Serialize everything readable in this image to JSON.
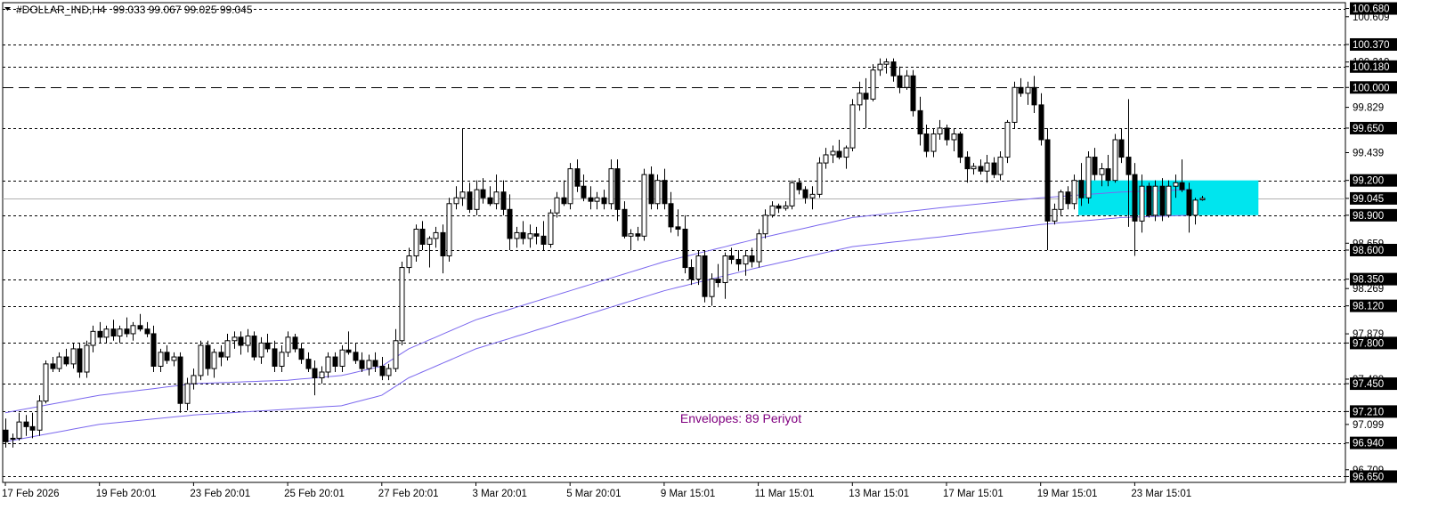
{
  "header": {
    "symbol_line": "#DOLLAR_IND,H4",
    "ohlc": "99.033 99.067 99.025 99.045"
  },
  "annotation": {
    "indicator_label": "Envelopes: 89 Periyot"
  },
  "colors": {
    "background": "#ffffff",
    "frame": "#000000",
    "candle_up_fill": "#ffffff",
    "candle_down_fill": "#000000",
    "candle_outline": "#000000",
    "envelope": "#7b68ee",
    "zone_fill": "#00e5ee",
    "bid_line": "#b0b0b0",
    "label_text": "#800080"
  },
  "chart_data": {
    "type": "candlestick",
    "symbol": "#DOLLAR_IND",
    "timeframe": "H4",
    "ylim": [
      96.6,
      100.73
    ],
    "y_ticks": [
      "100.680",
      "100.609",
      "100.370",
      "100.219",
      "100.180",
      "100.000",
      "99.829",
      "99.650",
      "99.439",
      "99.200",
      "99.045",
      "98.900",
      "98.659",
      "98.600",
      "98.350",
      "98.269",
      "98.120",
      "97.879",
      "97.800",
      "97.489",
      "97.450",
      "97.210",
      "97.099",
      "96.940",
      "96.709",
      "96.650"
    ],
    "x_tick_labels": [
      "17 Feb 2026",
      "19 Feb 20:01",
      "23 Feb 20:01",
      "25 Feb 20:01",
      "27 Feb 20:01",
      "3 Mar 20:01",
      "5 Mar 20:01",
      "9 Mar 15:01",
      "11 Mar 15:01",
      "13 Mar 15:01",
      "17 Mar 15:01",
      "19 Mar 15:01",
      "23 Mar 15:01"
    ],
    "x_tick_index": [
      0,
      14,
      28,
      42,
      56,
      70,
      84,
      98,
      112,
      126,
      140,
      154,
      168
    ],
    "horizontal_levels": [
      {
        "value": 100.68,
        "label": "100.680",
        "style": "dotted",
        "highlighted": true
      },
      {
        "value": 100.37,
        "label": "100.370",
        "style": "dotted",
        "highlighted": true
      },
      {
        "value": 100.18,
        "label": "100.180",
        "style": "dotted",
        "highlighted": true
      },
      {
        "value": 100.0,
        "label": "100.000",
        "style": "dashed",
        "highlighted": true
      },
      {
        "value": 99.65,
        "label": "99.650",
        "style": "dotted",
        "highlighted": true
      },
      {
        "value": 99.2,
        "label": "99.200",
        "style": "dotted",
        "highlighted": true
      },
      {
        "value": 99.045,
        "label": "99.045",
        "style": "solid",
        "highlighted": true
      },
      {
        "value": 98.9,
        "label": "98.900",
        "style": "dotted",
        "highlighted": true
      },
      {
        "value": 98.6,
        "label": "98.600",
        "style": "dotted",
        "highlighted": true
      },
      {
        "value": 98.35,
        "label": "98.350",
        "style": "dotted",
        "highlighted": true
      },
      {
        "value": 98.12,
        "label": "98.120",
        "style": "dotted",
        "highlighted": true
      },
      {
        "value": 97.8,
        "label": "97.800",
        "style": "dotted",
        "highlighted": true
      },
      {
        "value": 97.45,
        "label": "97.450",
        "style": "dotted",
        "highlighted": true
      },
      {
        "value": 97.21,
        "label": "97.210",
        "style": "dotted",
        "highlighted": true
      },
      {
        "value": 96.94,
        "label": "96.940",
        "style": "dotted",
        "highlighted": true
      },
      {
        "value": 96.65,
        "label": "96.650",
        "style": "dotted",
        "highlighted": true
      }
    ],
    "zone": {
      "x_from": 160,
      "x_to": 186,
      "y_from": 98.9,
      "y_to": 99.2
    },
    "envelope": {
      "period": 89,
      "upper": [
        [
          0,
          97.2
        ],
        [
          14,
          97.35
        ],
        [
          28,
          97.45
        ],
        [
          42,
          97.48
        ],
        [
          50,
          97.52
        ],
        [
          56,
          97.6
        ],
        [
          60,
          97.75
        ],
        [
          70,
          98.0
        ],
        [
          84,
          98.25
        ],
        [
          98,
          98.5
        ],
        [
          112,
          98.7
        ],
        [
          126,
          98.88
        ],
        [
          140,
          98.97
        ],
        [
          154,
          99.05
        ],
        [
          166,
          99.1
        ],
        [
          176,
          99.12
        ]
      ],
      "lower": [
        [
          0,
          96.95
        ],
        [
          14,
          97.1
        ],
        [
          28,
          97.18
        ],
        [
          42,
          97.23
        ],
        [
          50,
          97.26
        ],
        [
          56,
          97.35
        ],
        [
          60,
          97.5
        ],
        [
          70,
          97.75
        ],
        [
          84,
          98.0
        ],
        [
          98,
          98.25
        ],
        [
          112,
          98.45
        ],
        [
          126,
          98.63
        ],
        [
          140,
          98.72
        ],
        [
          154,
          98.82
        ],
        [
          166,
          98.88
        ],
        [
          176,
          98.9
        ]
      ]
    },
    "ohlc": [
      [
        97.05,
        97.15,
        96.9,
        96.95
      ],
      [
        96.98,
        97.02,
        96.9,
        96.98
      ],
      [
        96.98,
        97.2,
        96.96,
        97.12
      ],
      [
        97.12,
        97.18,
        97.0,
        97.08
      ],
      [
        97.08,
        97.2,
        96.98,
        97.05
      ],
      [
        97.05,
        97.35,
        97.0,
        97.3
      ],
      [
        97.3,
        97.65,
        97.28,
        97.62
      ],
      [
        97.62,
        97.68,
        97.55,
        97.58
      ],
      [
        97.58,
        97.72,
        97.55,
        97.68
      ],
      [
        97.68,
        97.75,
        97.6,
        97.62
      ],
      [
        97.62,
        97.8,
        97.58,
        97.75
      ],
      [
        97.75,
        97.8,
        97.5,
        97.55
      ],
      [
        97.55,
        97.82,
        97.5,
        97.78
      ],
      [
        97.78,
        97.95,
        97.72,
        97.9
      ],
      [
        97.9,
        97.98,
        97.8,
        97.85
      ],
      [
        97.85,
        97.95,
        97.8,
        97.92
      ],
      [
        97.92,
        98.0,
        97.82,
        97.86
      ],
      [
        97.86,
        97.95,
        97.8,
        97.92
      ],
      [
        97.92,
        98.02,
        97.85,
        97.88
      ],
      [
        97.88,
        97.98,
        97.82,
        97.95
      ],
      [
        97.95,
        98.05,
        97.9,
        97.92
      ],
      [
        97.92,
        97.98,
        97.85,
        97.88
      ],
      [
        97.88,
        97.95,
        97.55,
        97.6
      ],
      [
        97.6,
        97.75,
        97.55,
        97.72
      ],
      [
        97.72,
        97.78,
        97.62,
        97.65
      ],
      [
        97.65,
        97.72,
        97.6,
        97.68
      ],
      [
        97.68,
        97.72,
        97.2,
        97.28
      ],
      [
        97.28,
        97.5,
        97.22,
        97.45
      ],
      [
        97.45,
        97.58,
        97.4,
        97.52
      ],
      [
        97.52,
        97.82,
        97.48,
        97.78
      ],
      [
        97.78,
        97.82,
        97.52,
        97.58
      ],
      [
        97.58,
        97.75,
        97.5,
        97.72
      ],
      [
        97.72,
        97.78,
        97.6,
        97.68
      ],
      [
        97.68,
        97.88,
        97.65,
        97.82
      ],
      [
        97.82,
        97.9,
        97.75,
        97.85
      ],
      [
        97.85,
        97.9,
        97.7,
        97.78
      ],
      [
        97.78,
        97.92,
        97.72,
        97.86
      ],
      [
        97.86,
        97.9,
        97.65,
        97.68
      ],
      [
        97.68,
        97.85,
        97.62,
        97.8
      ],
      [
        97.8,
        97.88,
        97.72,
        97.75
      ],
      [
        97.75,
        97.82,
        97.55,
        97.6
      ],
      [
        97.6,
        97.78,
        97.55,
        97.72
      ],
      [
        97.72,
        97.9,
        97.68,
        97.85
      ],
      [
        97.85,
        97.88,
        97.72,
        97.75
      ],
      [
        97.75,
        97.8,
        97.62,
        97.66
      ],
      [
        97.66,
        97.72,
        97.55,
        97.58
      ],
      [
        97.58,
        97.65,
        97.35,
        97.5
      ],
      [
        97.5,
        97.6,
        97.45,
        97.55
      ],
      [
        97.55,
        97.72,
        97.5,
        97.68
      ],
      [
        97.68,
        97.72,
        97.55,
        97.6
      ],
      [
        97.6,
        97.78,
        97.55,
        97.74
      ],
      [
        97.74,
        97.9,
        97.7,
        97.72
      ],
      [
        97.72,
        97.8,
        97.62,
        97.65
      ],
      [
        97.65,
        97.72,
        97.55,
        97.58
      ],
      [
        97.58,
        97.7,
        97.52,
        97.65
      ],
      [
        97.65,
        97.72,
        97.55,
        97.6
      ],
      [
        97.6,
        97.68,
        97.48,
        97.52
      ],
      [
        97.52,
        97.62,
        97.48,
        97.58
      ],
      [
        97.58,
        97.92,
        97.55,
        97.82
      ],
      [
        97.82,
        98.5,
        97.78,
        98.45
      ],
      [
        98.45,
        98.62,
        98.4,
        98.55
      ],
      [
        98.55,
        98.82,
        98.5,
        98.78
      ],
      [
        98.78,
        98.85,
        98.6,
        98.65
      ],
      [
        98.65,
        98.72,
        98.45,
        98.7
      ],
      [
        98.7,
        98.8,
        98.62,
        98.75
      ],
      [
        98.75,
        98.82,
        98.4,
        98.55
      ],
      [
        98.55,
        99.05,
        98.5,
        99.0
      ],
      [
        99.0,
        99.15,
        98.95,
        99.05
      ],
      [
        99.05,
        99.65,
        98.98,
        99.1
      ],
      [
        99.1,
        99.18,
        98.92,
        98.95
      ],
      [
        98.95,
        99.2,
        98.9,
        99.12
      ],
      [
        99.12,
        99.22,
        99.0,
        99.05
      ],
      [
        99.05,
        99.15,
        98.98,
        99.0
      ],
      [
        99.0,
        99.25,
        98.95,
        99.1
      ],
      [
        99.1,
        99.2,
        98.9,
        98.95
      ],
      [
        98.95,
        99.08,
        98.6,
        98.7
      ],
      [
        98.7,
        98.8,
        98.62,
        98.75
      ],
      [
        98.75,
        98.85,
        98.65,
        98.7
      ],
      [
        98.7,
        98.82,
        98.62,
        98.74
      ],
      [
        98.74,
        98.8,
        98.65,
        98.72
      ],
      [
        98.72,
        98.85,
        98.6,
        98.65
      ],
      [
        98.65,
        98.95,
        98.62,
        98.92
      ],
      [
        98.92,
        99.1,
        98.88,
        99.05
      ],
      [
        99.05,
        99.2,
        98.98,
        99.0
      ],
      [
        99.0,
        99.35,
        98.95,
        99.3
      ],
      [
        99.3,
        99.38,
        99.1,
        99.15
      ],
      [
        99.15,
        99.25,
        99.02,
        99.05
      ],
      [
        99.05,
        99.15,
        98.95,
        99.02
      ],
      [
        99.02,
        99.1,
        98.95,
        99.05
      ],
      [
        99.05,
        99.12,
        98.95,
        99.0
      ],
      [
        99.0,
        99.38,
        98.95,
        99.3
      ],
      [
        99.3,
        99.38,
        98.85,
        98.95
      ],
      [
        98.95,
        99.02,
        98.7,
        98.72
      ],
      [
        98.72,
        98.78,
        98.6,
        98.74
      ],
      [
        98.74,
        98.8,
        98.68,
        98.72
      ],
      [
        98.72,
        99.3,
        98.68,
        99.25
      ],
      [
        99.25,
        99.32,
        98.95,
        99.0
      ],
      [
        99.0,
        99.25,
        98.95,
        99.2
      ],
      [
        99.2,
        99.3,
        98.95,
        99.0
      ],
      [
        99.0,
        99.1,
        98.75,
        98.8
      ],
      [
        98.8,
        98.95,
        98.72,
        98.78
      ],
      [
        98.78,
        98.9,
        98.4,
        98.45
      ],
      [
        98.45,
        98.52,
        98.3,
        98.35
      ],
      [
        98.35,
        98.6,
        98.3,
        98.55
      ],
      [
        98.55,
        98.6,
        98.15,
        98.2
      ],
      [
        98.2,
        98.4,
        98.12,
        98.35
      ],
      [
        98.35,
        98.48,
        98.28,
        98.32
      ],
      [
        98.32,
        98.58,
        98.18,
        98.55
      ],
      [
        98.55,
        98.62,
        98.48,
        98.52
      ],
      [
        98.52,
        98.6,
        98.42,
        98.48
      ],
      [
        98.48,
        98.6,
        98.38,
        98.55
      ],
      [
        98.55,
        98.62,
        98.45,
        98.5
      ],
      [
        98.5,
        98.78,
        98.45,
        98.74
      ],
      [
        98.74,
        98.95,
        98.7,
        98.9
      ],
      [
        98.9,
        99.02,
        98.88,
        98.98
      ],
      [
        98.98,
        99.0,
        98.92,
        98.96
      ],
      [
        98.96,
        99.02,
        98.94,
        98.98
      ],
      [
        98.98,
        99.2,
        98.95,
        99.18
      ],
      [
        99.18,
        99.22,
        99.08,
        99.12
      ],
      [
        99.12,
        99.15,
        99.0,
        99.05
      ],
      [
        99.05,
        99.15,
        98.95,
        99.08
      ],
      [
        99.08,
        99.4,
        99.05,
        99.35
      ],
      [
        99.35,
        99.48,
        99.3,
        99.42
      ],
      [
        99.42,
        99.5,
        99.35,
        99.45
      ],
      [
        99.45,
        99.55,
        99.38,
        99.4
      ],
      [
        99.4,
        99.5,
        99.3,
        99.48
      ],
      [
        99.48,
        99.9,
        99.45,
        99.85
      ],
      [
        99.85,
        100.05,
        99.8,
        99.95
      ],
      [
        99.95,
        100.08,
        99.65,
        99.9
      ],
      [
        99.9,
        100.2,
        99.88,
        100.15
      ],
      [
        100.15,
        100.25,
        100.1,
        100.2
      ],
      [
        100.2,
        100.25,
        100.12,
        100.22
      ],
      [
        100.22,
        100.25,
        100.05,
        100.1
      ],
      [
        100.1,
        100.18,
        99.95,
        100.0
      ],
      [
        100.0,
        100.15,
        99.98,
        100.1
      ],
      [
        100.1,
        100.15,
        99.75,
        99.8
      ],
      [
        99.8,
        99.92,
        99.5,
        99.6
      ],
      [
        99.6,
        99.68,
        99.4,
        99.45
      ],
      [
        99.45,
        99.65,
        99.4,
        99.6
      ],
      [
        99.6,
        99.72,
        99.55,
        99.65
      ],
      [
        99.65,
        99.68,
        99.5,
        99.55
      ],
      [
        99.55,
        99.65,
        99.45,
        99.6
      ],
      [
        99.6,
        99.62,
        99.35,
        99.4
      ],
      [
        99.4,
        99.45,
        99.18,
        99.3
      ],
      [
        99.3,
        99.35,
        99.25,
        99.32
      ],
      [
        99.32,
        99.38,
        99.25,
        99.28
      ],
      [
        99.28,
        99.42,
        99.18,
        99.35
      ],
      [
        99.35,
        99.4,
        99.22,
        99.25
      ],
      [
        99.25,
        99.45,
        99.2,
        99.4
      ],
      [
        99.4,
        99.72,
        99.35,
        99.7
      ],
      [
        99.7,
        100.05,
        99.65,
        100.0
      ],
      [
        100.0,
        100.08,
        99.92,
        99.95
      ],
      [
        99.95,
        100.05,
        99.85,
        100.0
      ],
      [
        100.0,
        100.1,
        99.78,
        99.85
      ],
      [
        99.85,
        99.95,
        99.5,
        99.55
      ],
      [
        99.55,
        99.65,
        98.6,
        98.85
      ],
      [
        98.85,
        99.0,
        98.82,
        98.95
      ],
      [
        98.95,
        99.12,
        98.9,
        99.1
      ],
      [
        99.1,
        99.15,
        98.95,
        99.0
      ],
      [
        99.0,
        99.25,
        98.95,
        99.2
      ],
      [
        99.2,
        99.35,
        98.98,
        99.05
      ],
      [
        99.05,
        99.45,
        99.0,
        99.4
      ],
      [
        99.4,
        99.48,
        99.2,
        99.25
      ],
      [
        99.25,
        99.35,
        99.15,
        99.3
      ],
      [
        99.3,
        99.42,
        99.15,
        99.2
      ],
      [
        99.2,
        99.6,
        99.18,
        99.55
      ],
      [
        99.55,
        99.65,
        99.35,
        99.4
      ],
      [
        99.4,
        99.9,
        98.8,
        99.25
      ],
      [
        99.25,
        99.35,
        98.55,
        98.85
      ],
      [
        98.85,
        99.25,
        98.75,
        99.15
      ],
      [
        99.15,
        99.18,
        98.88,
        98.9
      ],
      [
        98.9,
        99.2,
        98.85,
        99.15
      ],
      [
        99.15,
        99.22,
        98.85,
        98.9
      ],
      [
        98.9,
        99.2,
        98.88,
        99.15
      ],
      [
        99.15,
        99.25,
        99.05,
        99.18
      ],
      [
        99.18,
        99.38,
        99.1,
        99.12
      ],
      [
        99.12,
        99.18,
        98.75,
        98.9
      ],
      [
        98.9,
        99.05,
        98.82,
        99.03
      ],
      [
        99.033,
        99.067,
        99.025,
        99.045
      ]
    ]
  }
}
